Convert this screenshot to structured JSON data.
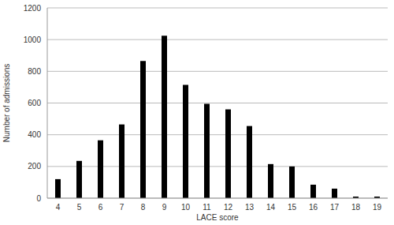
{
  "chart_data": {
    "type": "bar",
    "x_label": "LACE score",
    "y_label": "Number of admissions",
    "categories": [
      "4",
      "5",
      "6",
      "7",
      "8",
      "9",
      "10",
      "11",
      "12",
      "13",
      "14",
      "15",
      "16",
      "17",
      "18",
      "19"
    ],
    "values": [
      120,
      235,
      365,
      465,
      865,
      1025,
      715,
      595,
      560,
      455,
      215,
      200,
      85,
      60,
      10,
      10
    ],
    "color": "#000000",
    "ylim": [
      0,
      1200
    ],
    "yticks": [
      0,
      200,
      400,
      600,
      800,
      1000,
      1200
    ],
    "grid": true
  }
}
